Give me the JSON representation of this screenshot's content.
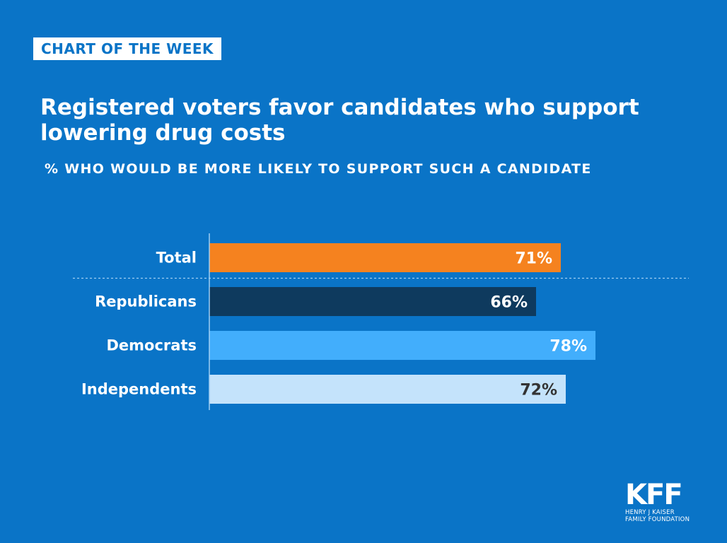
{
  "badge": "CHART OF THE WEEK",
  "chart_data": {
    "type": "bar",
    "orientation": "horizontal",
    "title": "Registered voters favor candidates who support lowering drug costs",
    "subtitle": "% WHO WOULD BE MORE LIKELY TO SUPPORT SUCH A CANDIDATE",
    "categories": [
      "Total",
      "Republicans",
      "Democrats",
      "Independents"
    ],
    "values": [
      71,
      66,
      78,
      72
    ],
    "value_labels": [
      "71%",
      "66%",
      "78%",
      "72%"
    ],
    "colors": [
      "#f5821f",
      "#0e3a5e",
      "#42aefc",
      "#c4e3fb"
    ],
    "label_colors": [
      "#ffffff",
      "#ffffff",
      "#ffffff",
      "#333333"
    ],
    "xlim": [
      0,
      100
    ],
    "grid": false,
    "separator_after": "Total"
  },
  "logo": {
    "mark": "KFF",
    "line1": "HENRY J KAISER",
    "line2": "FAMILY FOUNDATION"
  }
}
